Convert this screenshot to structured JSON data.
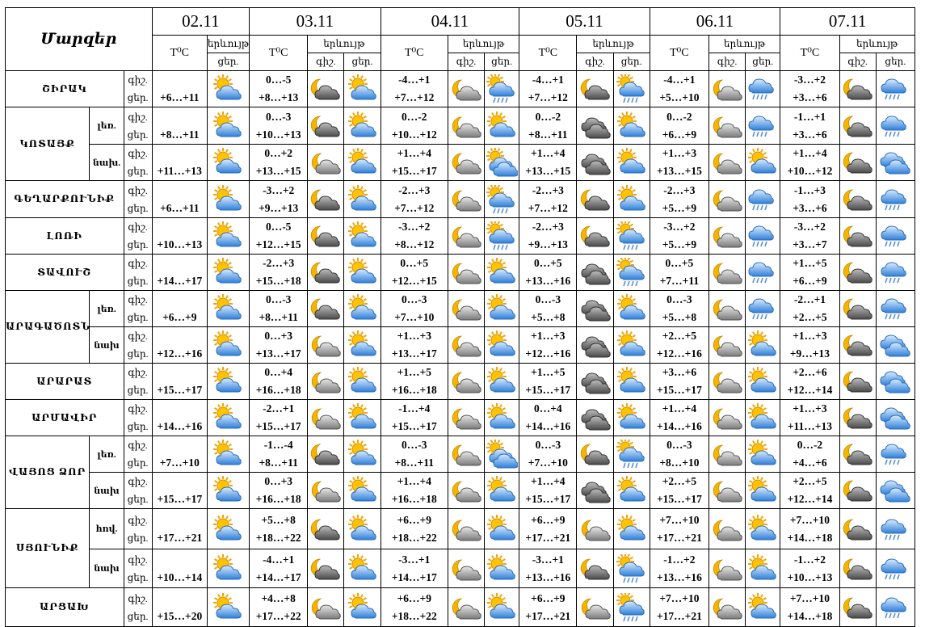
{
  "header": {
    "title": "Մարզեր",
    "tc": "T⁰C",
    "phen": "երևույթ",
    "day": "ցեր.",
    "night": "գիշ."
  },
  "dates": [
    "02.11",
    "03.11",
    "04.11",
    "05.11",
    "06.11",
    "07.11"
  ],
  "rows": [
    {
      "region": "ՇԻՐԱԿ",
      "zone": "",
      "temps": [
        [
          "",
          "+6…+11"
        ],
        [
          "0…-5",
          "+8…+13"
        ],
        [
          "-4…+1",
          "+7…+12"
        ],
        [
          "-4…+1",
          "+7…+12"
        ],
        [
          "-4…+1",
          "+5…+10"
        ],
        [
          "-3…+2",
          "+3…+6"
        ]
      ],
      "icons": [
        [
          "sun-cloud"
        ],
        [
          "moon-dark-cloud",
          "sun-cloud"
        ],
        [
          "moon-cloud",
          "rain-sun"
        ],
        [
          "moon-dark-cloud",
          "rain-sun"
        ],
        [
          "moon-cloud",
          "rain-cloud"
        ],
        [
          "moon-dark-cloud",
          "rain-cloud"
        ]
      ]
    },
    {
      "region": "ԿՈՏԱՅՔ",
      "zone": "լեռ.",
      "temps": [
        [
          "",
          "+8…+11"
        ],
        [
          "0…-3",
          "+10…+13"
        ],
        [
          "0…-2",
          "+10…+12"
        ],
        [
          "0…-2",
          "+8…+11"
        ],
        [
          "0…-2",
          "+6…+9"
        ],
        [
          "-1…+1",
          "+3…+6"
        ]
      ],
      "icons": [
        [
          "sun-cloud"
        ],
        [
          "moon-dark-cloud",
          "sun-cloud"
        ],
        [
          "moon-cloud",
          "sun-cloud"
        ],
        [
          "dark-cloud",
          "sun-cloud"
        ],
        [
          "moon-cloud",
          "rain-cloud"
        ],
        [
          "moon-dark-cloud",
          "rain-cloud"
        ]
      ]
    },
    {
      "region": "",
      "zone": "նախ.",
      "temps": [
        [
          "",
          "+11…+13"
        ],
        [
          "0…+2",
          "+13…+15"
        ],
        [
          "+1…+4",
          "+15…+17"
        ],
        [
          "+1…+4",
          "+13…+15"
        ],
        [
          "+1…+3",
          "+13…+15"
        ],
        [
          "+1…+4",
          "+10…+12"
        ]
      ],
      "icons": [
        [
          "sun-cloud"
        ],
        [
          "moon-cloud",
          "sun-cloud"
        ],
        [
          "moon-cloud",
          "sun-blue-cloud"
        ],
        [
          "dark-cloud",
          "sun-cloud"
        ],
        [
          "moon-cloud",
          "sun-cloud"
        ],
        [
          "moon-dark-cloud",
          "blue-cloud"
        ]
      ]
    },
    {
      "region": "ԳԵՂԱՐՔՈՒՆԻՔ",
      "zone": "",
      "temps": [
        [
          "",
          "+6…+11"
        ],
        [
          "-3…+2",
          "+9…+13"
        ],
        [
          "-2…+3",
          "+7…+12"
        ],
        [
          "-2…+3",
          "+7…+12"
        ],
        [
          "-2…+3",
          "+5…+9"
        ],
        [
          "-1…+3",
          "+3…+6"
        ]
      ],
      "icons": [
        [
          "sun-cloud"
        ],
        [
          "moon-dark-cloud",
          "sun-cloud"
        ],
        [
          "moon-cloud",
          "rain-sun"
        ],
        [
          "moon-dark-cloud",
          "sun-cloud"
        ],
        [
          "moon-cloud",
          "rain-cloud"
        ],
        [
          "moon-dark-cloud",
          "rain-cloud"
        ]
      ]
    },
    {
      "region": "ԼՈՌԻ",
      "zone": "",
      "temps": [
        [
          "",
          "+10…+13"
        ],
        [
          "0…-5",
          "+12…+15"
        ],
        [
          "-3…+2",
          "+8…+12"
        ],
        [
          "-2…+3",
          "+9…+13"
        ],
        [
          "-3…+2",
          "+5…+9"
        ],
        [
          "-3…+2",
          "+3…+7"
        ]
      ],
      "icons": [
        [
          "sun-cloud"
        ],
        [
          "moon-dark-cloud",
          "sun-cloud"
        ],
        [
          "moon-cloud",
          "rain-sun"
        ],
        [
          "moon-dark-cloud",
          "rain-sun"
        ],
        [
          "moon-cloud",
          "rain-cloud"
        ],
        [
          "moon-dark-cloud",
          "rain-cloud"
        ]
      ]
    },
    {
      "region": "ՏԱՎՈՒՇ",
      "zone": "",
      "temps": [
        [
          "",
          "+14…+17"
        ],
        [
          "-2…+3",
          "+15…+18"
        ],
        [
          "0…+5",
          "+12…+15"
        ],
        [
          "0…+5",
          "+13…+16"
        ],
        [
          "0…+5",
          "+7…+11"
        ],
        [
          "+1…+5",
          "+6…+9"
        ]
      ],
      "icons": [
        [
          "sun-cloud"
        ],
        [
          "moon-dark-cloud",
          "sun-cloud"
        ],
        [
          "moon-cloud",
          "sun-cloud"
        ],
        [
          "dark-cloud",
          "rain-sun"
        ],
        [
          "moon-cloud",
          "rain-cloud"
        ],
        [
          "moon-dark-cloud",
          "rain-cloud"
        ]
      ]
    },
    {
      "region": "ԱՐԱԳԱԾՈՏՆ",
      "zone": "լեռ.",
      "temps": [
        [
          "",
          "+6…+9"
        ],
        [
          "0…-3",
          "+8…+11"
        ],
        [
          "0…-3",
          "+7…+10"
        ],
        [
          "0…-3",
          "+5…+8"
        ],
        [
          "0…-3",
          "+5…+8"
        ],
        [
          "-2…+1",
          "+2…+5"
        ]
      ],
      "icons": [
        [
          "sun-cloud"
        ],
        [
          "moon-dark-cloud",
          "sun-cloud"
        ],
        [
          "moon-cloud",
          "sun-cloud"
        ],
        [
          "dark-cloud",
          "sun-cloud"
        ],
        [
          "moon-cloud",
          "rain-cloud"
        ],
        [
          "moon-dark-cloud",
          "rain-cloud"
        ]
      ]
    },
    {
      "region": "",
      "zone": "նախ",
      "temps": [
        [
          "",
          "+12…+16"
        ],
        [
          "0…+3",
          "+13…+17"
        ],
        [
          "+1…+3",
          "+13…+17"
        ],
        [
          "+1…+3",
          "+12…+16"
        ],
        [
          "+2…+5",
          "+12…+16"
        ],
        [
          "+1…+3",
          "+9…+13"
        ]
      ],
      "icons": [
        [
          "sun-cloud"
        ],
        [
          "moon-cloud",
          "sun-cloud"
        ],
        [
          "moon-cloud",
          "sun-cloud"
        ],
        [
          "dark-cloud",
          "sun-cloud"
        ],
        [
          "moon-cloud",
          "sun-cloud"
        ],
        [
          "moon-dark-cloud",
          "blue-cloud"
        ]
      ]
    },
    {
      "region": "ԱՐԱՐԱՏ",
      "zone": "",
      "temps": [
        [
          "",
          "+15…+17"
        ],
        [
          "0…+4",
          "+16…+18"
        ],
        [
          "+1…+5",
          "+16…+18"
        ],
        [
          "+1…+5",
          "+15…+17"
        ],
        [
          "+3…+6",
          "+15…+17"
        ],
        [
          "+2…+6",
          "+12…+14"
        ]
      ],
      "icons": [
        [
          "sun-cloud"
        ],
        [
          "moon-cloud",
          "sun-cloud"
        ],
        [
          "moon-cloud",
          "sun-cloud"
        ],
        [
          "dark-cloud",
          "sun-cloud"
        ],
        [
          "moon-cloud",
          "sun-cloud"
        ],
        [
          "moon-dark-cloud",
          "blue-cloud"
        ]
      ]
    },
    {
      "region": "ԱՐՄԱՎԻՐ",
      "zone": "",
      "temps": [
        [
          "",
          "+14…+16"
        ],
        [
          "-2…+1",
          "+15…+17"
        ],
        [
          "-1…+4",
          "+15…+17"
        ],
        [
          "0…+4",
          "+14…+16"
        ],
        [
          "+1…+4",
          "+14…+16"
        ],
        [
          "+1…+3",
          "+11…+13"
        ]
      ],
      "icons": [
        [
          "sun-cloud"
        ],
        [
          "moon-cloud",
          "sun-cloud"
        ],
        [
          "moon-cloud",
          "sun-cloud"
        ],
        [
          "dark-cloud",
          "sun-cloud"
        ],
        [
          "moon-cloud",
          "sun-cloud"
        ],
        [
          "moon-dark-cloud",
          "blue-cloud"
        ]
      ]
    },
    {
      "region": "ՎԱՅՈՑ ՁՈՐ",
      "zone": "լեռ.",
      "temps": [
        [
          "",
          "+7…+10"
        ],
        [
          "-1…-4",
          "+8…+11"
        ],
        [
          "0…-3",
          "+8…+11"
        ],
        [
          "0…-3",
          "+7…+10"
        ],
        [
          "0…-3",
          "+8…+10"
        ],
        [
          "0…-2",
          "+4…+6"
        ]
      ],
      "icons": [
        [
          "sun-cloud"
        ],
        [
          "moon-dark-cloud",
          "sun-cloud"
        ],
        [
          "moon-cloud",
          "sun-blue-cloud"
        ],
        [
          "moon-dark-cloud",
          "rain-sun"
        ],
        [
          "moon-cloud",
          "sun-cloud"
        ],
        [
          "moon-dark-cloud",
          "rain-cloud"
        ]
      ]
    },
    {
      "region": "",
      "zone": "նախ",
      "temps": [
        [
          "",
          "+15…+17"
        ],
        [
          "0…+3",
          "+16…+18"
        ],
        [
          "+1…+4",
          "+16…+18"
        ],
        [
          "+1…+4",
          "+15…+17"
        ],
        [
          "+2…+5",
          "+15…+17"
        ],
        [
          "+2…+5",
          "+12…+14"
        ]
      ],
      "icons": [
        [
          "sun-cloud"
        ],
        [
          "moon-cloud",
          "sun-cloud"
        ],
        [
          "moon-cloud",
          "sun-cloud"
        ],
        [
          "dark-cloud",
          "sun-cloud"
        ],
        [
          "moon-cloud",
          "sun-cloud"
        ],
        [
          "moon-dark-cloud",
          "blue-cloud"
        ]
      ]
    },
    {
      "region": "ՍՅՈՒՆԻՔ",
      "zone": "հով.",
      "temps": [
        [
          "",
          "+17…+21"
        ],
        [
          "+5…+8",
          "+18…+22"
        ],
        [
          "+6…+9",
          "+18…+22"
        ],
        [
          "+6…+9",
          "+17…+21"
        ],
        [
          "+7…+10",
          "+17…+21"
        ],
        [
          "+7…+10",
          "+14…+18"
        ]
      ],
      "icons": [
        [
          "sun-cloud"
        ],
        [
          "moon-dark-cloud",
          "sun-cloud"
        ],
        [
          "moon-cloud",
          "sun-cloud"
        ],
        [
          "moon-cloud",
          "sun-cloud"
        ],
        [
          "moon-cloud",
          "sun-cloud"
        ],
        [
          "moon-dark-cloud",
          "rain-cloud"
        ]
      ]
    },
    {
      "region": "",
      "zone": "նախ",
      "temps": [
        [
          "",
          "+10…+14"
        ],
        [
          "-4…+1",
          "+14…+17"
        ],
        [
          "-3…+1",
          "+14…+17"
        ],
        [
          "-3…+1",
          "+13…+16"
        ],
        [
          "-1…+2",
          "+13…+16"
        ],
        [
          "-1…+2",
          "+10…+13"
        ]
      ],
      "icons": [
        [
          "sun-cloud"
        ],
        [
          "moon-dark-cloud",
          "sun-cloud"
        ],
        [
          "moon-cloud",
          "sun-cloud"
        ],
        [
          "moon-dark-cloud",
          "rain-sun"
        ],
        [
          "moon-cloud",
          "sun-cloud"
        ],
        [
          "moon-dark-cloud",
          "rain-cloud"
        ]
      ]
    },
    {
      "region": "ԱՐՑԱԽ",
      "zone": "",
      "temps": [
        [
          "",
          "+15…+20"
        ],
        [
          "+4…+8",
          "+17…+22"
        ],
        [
          "+6…+9",
          "+18…+22"
        ],
        [
          "+6…+9",
          "+17…+21"
        ],
        [
          "+7…+10",
          "+17…+21"
        ],
        [
          "+7…+10",
          "+14…+18"
        ]
      ],
      "icons": [
        [
          "sun-cloud"
        ],
        [
          "moon-cloud",
          "sun-cloud"
        ],
        [
          "moon-cloud",
          "sun-cloud"
        ],
        [
          "moon-cloud",
          "rain-sun"
        ],
        [
          "moon-cloud",
          "sun-cloud"
        ],
        [
          "moon-dark-cloud",
          "rain-cloud"
        ]
      ]
    }
  ]
}
